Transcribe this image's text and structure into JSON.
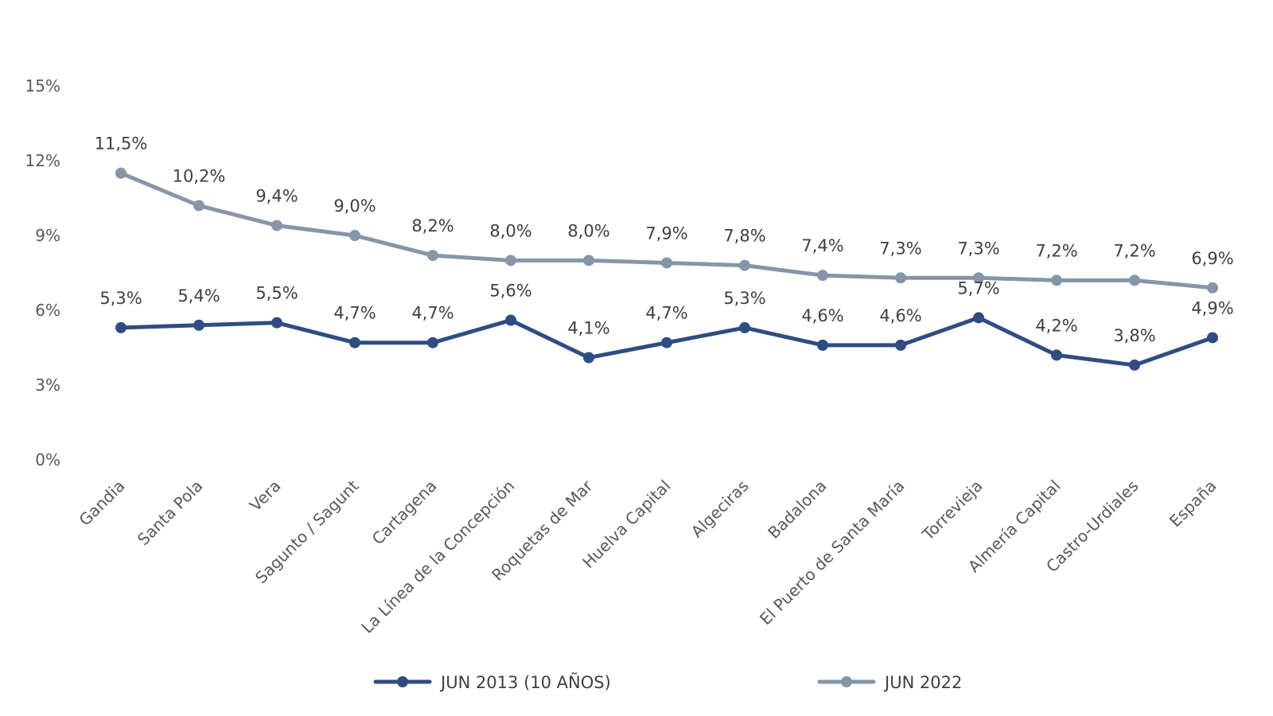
{
  "chart_data": {
    "type": "line",
    "title": "",
    "xlabel": "",
    "ylabel": "",
    "ylim": [
      0,
      15
    ],
    "yticks": [
      "0%",
      "3%",
      "6%",
      "9%",
      "12%",
      "15%"
    ],
    "ytick_values": [
      0,
      3,
      6,
      9,
      12,
      15
    ],
    "grid": false,
    "legend_position": "bottom",
    "categories": [
      "Gandia",
      "Santa Pola",
      "Vera",
      "Sagunto / Sagunt",
      "Cartagena",
      "La Línea de la Concepción",
      "Roquetas de Mar",
      "Huelva Capital",
      "Algeciras",
      "Badalona",
      "El Puerto de Santa María",
      "Torrevieja",
      "Almería Capital",
      "Castro-Urdiales",
      "España"
    ],
    "series": [
      {
        "name": "JUN 2013  (10 AÑOS)",
        "color": "#2f4d82",
        "values": [
          5.3,
          5.4,
          5.5,
          4.7,
          4.7,
          5.6,
          4.1,
          4.7,
          5.3,
          4.6,
          4.6,
          5.7,
          4.2,
          3.8,
          4.9
        ],
        "labels": [
          "5,3%",
          "5,4%",
          "5,5%",
          "4,7%",
          "4,7%",
          "5,6%",
          "4,1%",
          "4,7%",
          "5,3%",
          "4,6%",
          "4,6%",
          "5,7%",
          "4,2%",
          "3,8%",
          "4,9%"
        ]
      },
      {
        "name": "JUN 2022",
        "color": "#8696a8",
        "values": [
          11.5,
          10.2,
          9.4,
          9.0,
          8.2,
          8.0,
          8.0,
          7.9,
          7.8,
          7.4,
          7.3,
          7.3,
          7.2,
          7.2,
          6.9
        ],
        "labels": [
          "11,5%",
          "10,2%",
          "9,4%",
          "9,0%",
          "8,2%",
          "8,0%",
          "8,0%",
          "7,9%",
          "7,8%",
          "7,4%",
          "7,3%",
          "7,3%",
          "7,2%",
          "7,2%",
          "6,9%"
        ]
      }
    ]
  }
}
